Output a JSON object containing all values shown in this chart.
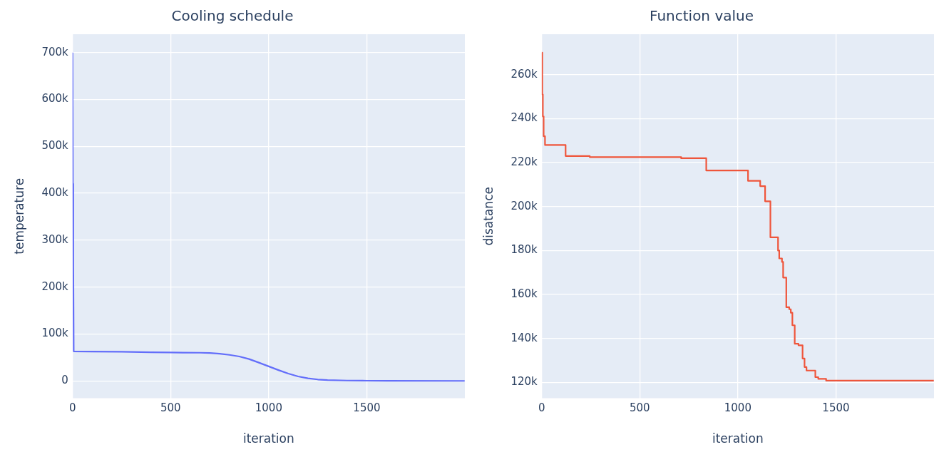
{
  "chart_data": [
    {
      "type": "line",
      "title": "Cooling schedule",
      "xlabel": "iteration",
      "ylabel": "temperature",
      "grid": true,
      "legend": false,
      "xlim": [
        0,
        2000
      ],
      "xticks": [
        0,
        500,
        1000,
        1500
      ],
      "ylim": [
        -37000,
        739000
      ],
      "yticks": [
        0,
        {
          "value": 100000,
          "label": "100k"
        },
        {
          "value": 200000,
          "label": "200k"
        },
        {
          "value": 300000,
          "label": "300k"
        },
        {
          "value": 400000,
          "label": "400k"
        },
        {
          "value": 500000,
          "label": "500k"
        },
        {
          "value": 600000,
          "label": "600k"
        },
        {
          "value": 700000,
          "label": "700k"
        }
      ],
      "series": [
        {
          "color": "#636efa",
          "x": [
            0,
            2,
            4,
            6,
            100,
            250,
            400,
            500,
            650,
            700,
            750,
            800,
            850,
            900,
            950,
            1000,
            1050,
            1100,
            1150,
            1200,
            1250,
            1300,
            1400,
            1500,
            1600,
            1999
          ],
          "values": [
            700000,
            420000,
            245000,
            63000,
            62500,
            62000,
            61000,
            60500,
            60000,
            59500,
            58000,
            55500,
            52000,
            46500,
            39000,
            31000,
            23000,
            15500,
            9500,
            5500,
            3000,
            1800,
            800,
            400,
            200,
            0
          ]
        }
      ]
    },
    {
      "type": "step",
      "title": "Function value",
      "xlabel": "iteration",
      "ylabel": "disatance",
      "grid": true,
      "legend": false,
      "xlim": [
        0,
        2000
      ],
      "xticks": [
        0,
        500,
        1000,
        1500
      ],
      "ylim": [
        112800,
        278400
      ],
      "yticks": [
        {
          "value": 120000,
          "label": "120k"
        },
        {
          "value": 140000,
          "label": "140k"
        },
        {
          "value": 160000,
          "label": "160k"
        },
        {
          "value": 180000,
          "label": "180k"
        },
        {
          "value": 200000,
          "label": "200k"
        },
        {
          "value": 220000,
          "label": "220k"
        },
        {
          "value": 240000,
          "label": "240k"
        },
        {
          "value": 260000,
          "label": "260k"
        }
      ],
      "series": [
        {
          "color": "#ef553b",
          "x": [
            0,
            3,
            6,
            10,
            17,
            122,
            245,
            711,
            839,
            1052,
            1114,
            1139,
            1166,
            1205,
            1211,
            1225,
            1231,
            1247,
            1262,
            1270,
            1278,
            1290,
            1309,
            1330,
            1340,
            1350,
            1395,
            1410,
            1450,
            1999
          ],
          "values": [
            270000,
            251000,
            241000,
            232000,
            228000,
            223000,
            222500,
            222000,
            216400,
            211700,
            209300,
            202400,
            186000,
            180000,
            176400,
            174800,
            167700,
            154200,
            153300,
            151700,
            146000,
            137600,
            136900,
            130900,
            127000,
            125400,
            122400,
            121600,
            120800,
            120800
          ]
        }
      ]
    }
  ]
}
